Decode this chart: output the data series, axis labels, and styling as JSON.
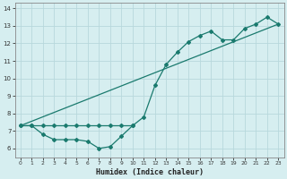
{
  "xlabel": "Humidex (Indice chaleur)",
  "bg_color": "#d6eef0",
  "grid_color": "#b8d8dc",
  "line_color": "#1a7a6e",
  "xlim": [
    -0.5,
    23.5
  ],
  "ylim": [
    5.5,
    14.3
  ],
  "xticks": [
    0,
    1,
    2,
    3,
    4,
    5,
    6,
    7,
    8,
    9,
    10,
    11,
    12,
    13,
    14,
    15,
    16,
    17,
    18,
    19,
    20,
    21,
    22,
    23
  ],
  "yticks": [
    6,
    7,
    8,
    9,
    10,
    11,
    12,
    13,
    14
  ],
  "curve1_x": [
    0,
    1,
    2,
    3,
    4,
    5,
    6,
    7,
    8,
    9,
    10
  ],
  "curve1_y": [
    7.3,
    7.3,
    7.3,
    7.3,
    7.3,
    7.3,
    7.3,
    7.3,
    7.3,
    7.3,
    7.3
  ],
  "curve2_x": [
    0,
    1,
    2,
    3,
    4,
    5,
    6,
    7,
    8,
    9,
    10,
    11,
    12,
    13,
    14,
    15,
    16,
    17,
    18,
    19,
    20,
    21,
    22,
    23
  ],
  "curve2_y": [
    7.3,
    7.3,
    6.8,
    6.5,
    6.5,
    6.5,
    6.4,
    6.0,
    6.1,
    6.7,
    7.3,
    7.8,
    9.6,
    10.8,
    11.5,
    12.1,
    12.45,
    12.7,
    12.2,
    12.2,
    12.85,
    13.1,
    13.5,
    13.1
  ],
  "curve3_x": [
    0,
    23
  ],
  "curve3_y": [
    7.3,
    13.1
  ]
}
